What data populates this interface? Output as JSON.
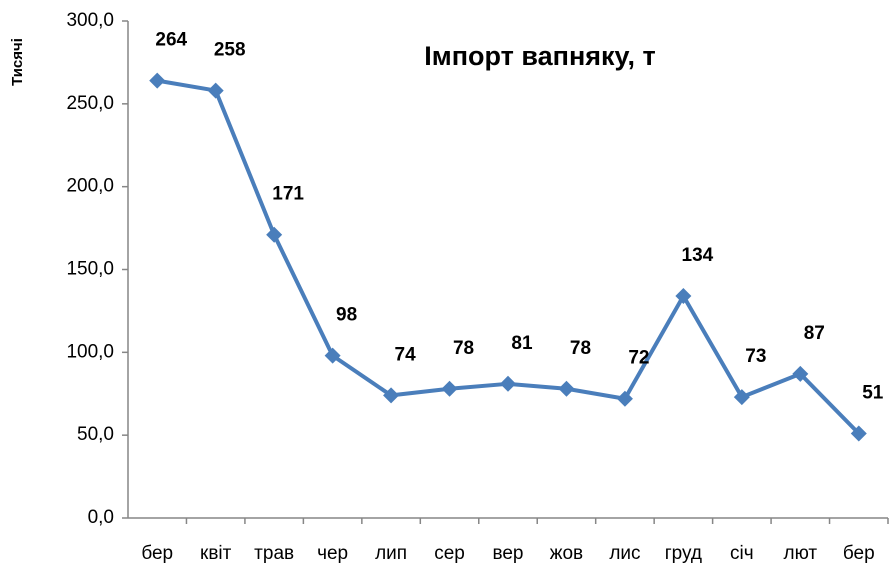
{
  "chart_data": {
    "type": "line",
    "title": "Імпорт вапняку, т",
    "y_label": "Тисячі",
    "categories": [
      "бер",
      "квіт",
      "трав",
      "чер",
      "лип",
      "сер",
      "вер",
      "жов",
      "лис",
      "груд",
      "січ",
      "лют",
      "бер"
    ],
    "series": [
      {
        "name": "Імпорт вапняку",
        "color": "#4a7ebb",
        "values": [
          264,
          258,
          171,
          98,
          74,
          78,
          81,
          78,
          72,
          134,
          73,
          87,
          51
        ]
      }
    ],
    "ylim": [
      0,
      300
    ],
    "yticks": [
      {
        "value": 0,
        "label": "0,0"
      },
      {
        "value": 50,
        "label": "50,0"
      },
      {
        "value": 100,
        "label": "100,0"
      },
      {
        "value": 150,
        "label": "150,0"
      },
      {
        "value": 200,
        "label": "200,0"
      },
      {
        "value": 250,
        "label": "250,0"
      },
      {
        "value": 300,
        "label": "300,0"
      }
    ],
    "grid": false
  }
}
